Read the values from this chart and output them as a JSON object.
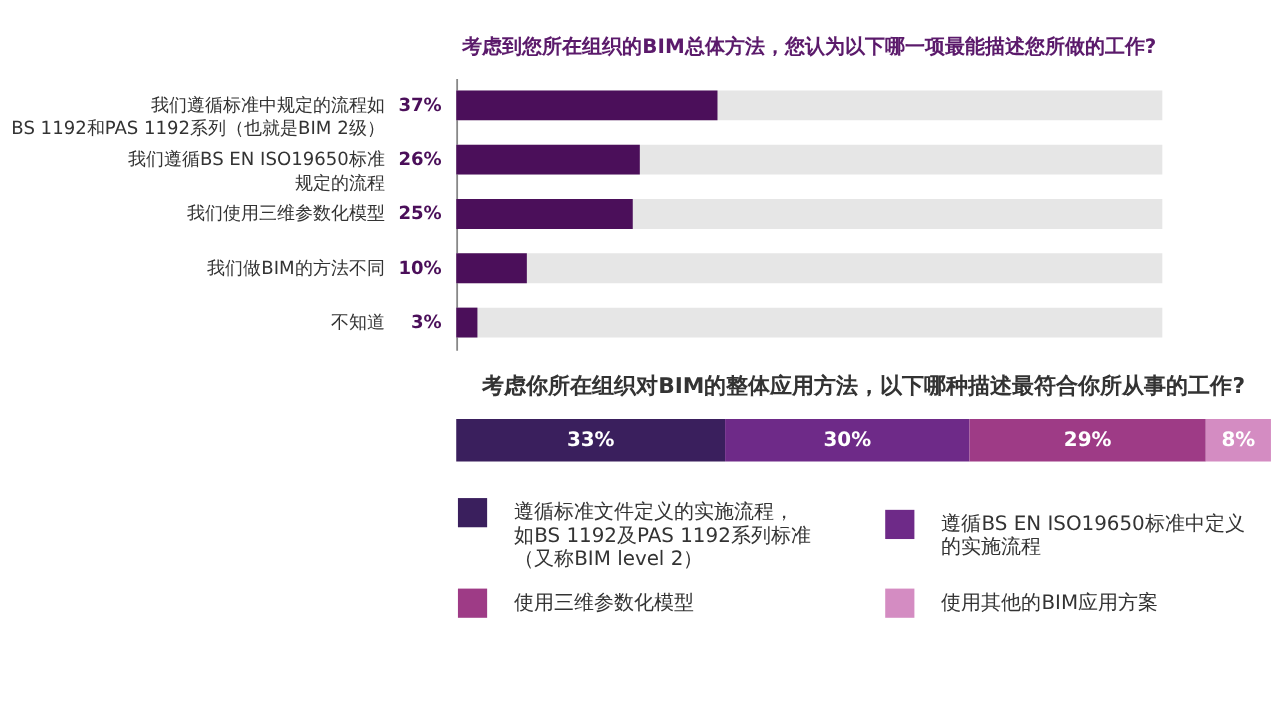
{
  "chart_data": [
    {
      "type": "bar",
      "orientation": "horizontal",
      "title": "考虑到您所在组织的BIM总体方法，您认为以下哪一项最能描述您所做的工作?",
      "categories": [
        "我们遵循标准中规定的流程如BS 1192和PAS 1192系列（也就是BIM 2级）",
        "我们遵循BS EN ISO19650标准规定的流程",
        "我们使用三维参数化模型",
        "我们做BIM的方法不同",
        "不知道"
      ],
      "values": [
        37,
        26,
        25,
        10,
        3
      ],
      "value_labels": [
        "37%",
        "26%",
        "25%",
        "10%",
        "3%"
      ],
      "color": "#4b0f5a",
      "xlim": [
        0,
        100
      ],
      "tick_labels": "y"
    },
    {
      "type": "bar",
      "orientation": "horizontal",
      "stacked": true,
      "title": "考虑你所在组织对BIM的整体应用方法，以下哪种描述最符合你所从事的工作?",
      "categories": [
        null
      ],
      "xlim": [
        0,
        100
      ],
      "tick_labels": false,
      "legend": "bottom",
      "series": [
        {
          "name": "遵循标准文件定义的实施流程，如BS 1192及PAS 1192系列标准（又称BIM level 2）",
          "color": "#3a1f5d",
          "values": [
            33
          ],
          "value_labels": [
            "33%"
          ]
        },
        {
          "name": "遵循BS EN ISO19650标准中定义的实施流程",
          "color": "#6e2a88",
          "values": [
            30
          ],
          "value_labels": [
            "30%"
          ]
        },
        {
          "name": "使用三维参数化模型",
          "color": "#9e3b86",
          "values": [
            29
          ],
          "value_labels": [
            "29%"
          ]
        },
        {
          "name": "使用其他的BIM应用方案",
          "color": "#d48cc2",
          "values": [
            8
          ],
          "value_labels": [
            "8%"
          ]
        }
      ]
    }
  ]
}
